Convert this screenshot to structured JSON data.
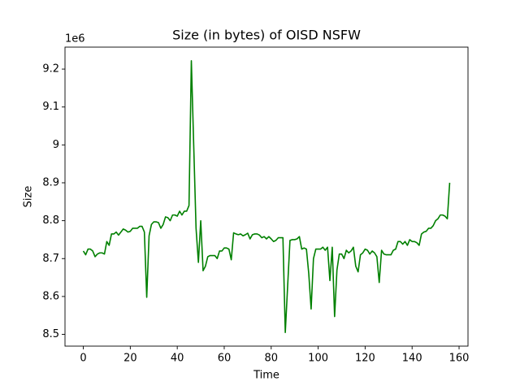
{
  "chart_data": {
    "type": "line",
    "title": "Size (in bytes) of OISD NSFW",
    "x_label": "Time",
    "y_label": "Size",
    "y_scale_label": "1e6",
    "x": [
      0,
      1,
      2,
      3,
      4,
      5,
      6,
      7,
      8,
      9,
      10,
      11,
      12,
      13,
      14,
      15,
      16,
      17,
      18,
      19,
      20,
      21,
      22,
      23,
      24,
      25,
      26,
      27,
      28,
      29,
      30,
      31,
      32,
      33,
      34,
      35,
      36,
      37,
      38,
      39,
      40,
      41,
      42,
      43,
      44,
      45,
      46,
      47,
      48,
      49,
      50,
      51,
      52,
      53,
      54,
      55,
      56,
      57,
      58,
      59,
      60,
      61,
      62,
      63,
      64,
      65,
      66,
      67,
      68,
      69,
      70,
      71,
      72,
      73,
      74,
      75,
      76,
      77,
      78,
      79,
      80,
      81,
      82,
      83,
      84,
      85,
      86,
      87,
      88,
      89,
      90,
      91,
      92,
      93,
      94,
      95,
      96,
      97,
      98,
      99,
      100,
      101,
      102,
      103,
      104,
      105,
      106,
      107,
      108,
      109,
      110,
      111,
      112,
      113,
      114,
      115,
      116,
      117,
      118,
      119,
      120,
      121,
      122,
      123,
      124,
      125,
      126,
      127,
      128,
      129,
      130,
      131,
      132,
      133,
      134,
      135,
      136,
      137,
      138,
      139,
      140,
      141,
      142,
      143,
      144,
      145,
      146,
      147,
      148,
      149,
      150,
      151,
      152,
      153,
      154,
      155,
      156
    ],
    "series": [
      {
        "name": "Size",
        "color": "#008000",
        "values": [
          8.72,
          8.71,
          8.725,
          8.725,
          8.72,
          8.705,
          8.712,
          8.715,
          8.715,
          8.712,
          8.745,
          8.735,
          8.765,
          8.765,
          8.77,
          8.762,
          8.77,
          8.778,
          8.775,
          8.77,
          8.772,
          8.78,
          8.78,
          8.78,
          8.785,
          8.785,
          8.77,
          8.598,
          8.76,
          8.79,
          8.797,
          8.797,
          8.795,
          8.78,
          8.79,
          8.81,
          8.808,
          8.8,
          8.815,
          8.815,
          8.812,
          8.825,
          8.815,
          8.825,
          8.825,
          8.84,
          9.222,
          9.0,
          8.78,
          8.69,
          8.8,
          8.668,
          8.68,
          8.705,
          8.708,
          8.708,
          8.708,
          8.7,
          8.72,
          8.72,
          8.728,
          8.728,
          8.725,
          8.697,
          8.768,
          8.765,
          8.763,
          8.765,
          8.76,
          8.763,
          8.767,
          8.752,
          8.763,
          8.765,
          8.765,
          8.762,
          8.755,
          8.758,
          8.752,
          8.758,
          8.752,
          8.745,
          8.748,
          8.755,
          8.755,
          8.755,
          8.505,
          8.627,
          8.748,
          8.75,
          8.75,
          8.752,
          8.758,
          8.725,
          8.728,
          8.725,
          8.66,
          8.567,
          8.7,
          8.725,
          8.725,
          8.725,
          8.73,
          8.722,
          8.73,
          8.642,
          8.73,
          8.547,
          8.67,
          8.712,
          8.712,
          8.7,
          8.722,
          8.715,
          8.72,
          8.73,
          8.68,
          8.665,
          8.71,
          8.715,
          8.725,
          8.722,
          8.712,
          8.72,
          8.715,
          8.705,
          8.637,
          8.722,
          8.712,
          8.71,
          8.71,
          8.71,
          8.722,
          8.725,
          8.745,
          8.745,
          8.738,
          8.745,
          8.735,
          8.75,
          8.745,
          8.745,
          8.742,
          8.735,
          8.765,
          8.77,
          8.772,
          8.78,
          8.78,
          8.787,
          8.8,
          8.805,
          8.815,
          8.815,
          8.812,
          8.805,
          8.9
        ]
      }
    ],
    "xlim": [
      -7.8,
      163.8
    ],
    "ylim": [
      8.469,
      9.258
    ],
    "xticks": [
      0,
      20,
      40,
      60,
      80,
      100,
      120,
      140,
      160
    ],
    "yticks": [
      8.5,
      8.6,
      8.7,
      8.8,
      8.9,
      9.0,
      9.1,
      9.2
    ],
    "grid": false
  }
}
